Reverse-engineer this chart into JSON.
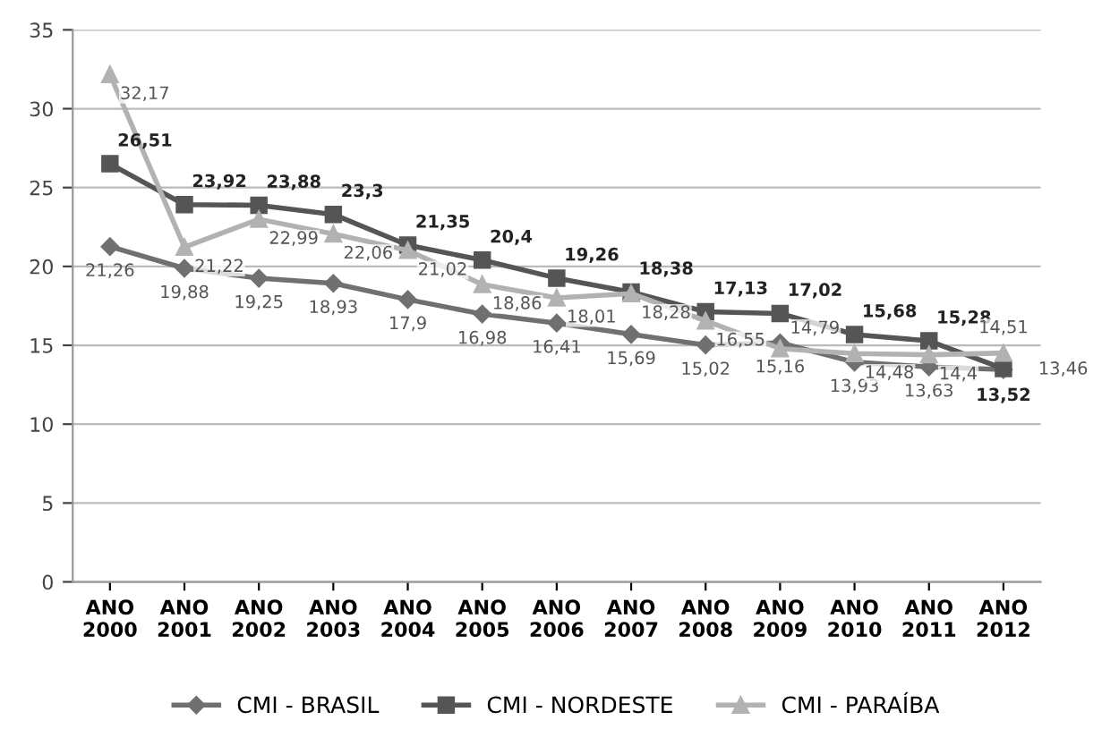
{
  "chart_data": {
    "type": "line",
    "categories": [
      "ANO\n2000",
      "ANO\n2001",
      "ANO\n2002",
      "ANO\n2003",
      "ANO\n2004",
      "ANO\n2005",
      "ANO\n2006",
      "ANO\n2007",
      "ANO\n2008",
      "ANO\n2009",
      "ANO\n2010",
      "ANO\n2011",
      "ANO\n2012"
    ],
    "series": [
      {
        "name": "CMI - BRASIL",
        "color": "#707070",
        "marker": "diamond",
        "values": [
          21.26,
          19.88,
          19.25,
          18.93,
          17.9,
          16.98,
          16.41,
          15.69,
          15.02,
          15.16,
          13.93,
          13.63,
          13.46
        ],
        "value_labels": [
          "21,26",
          "19,88",
          "19,25",
          "18,93",
          "17,9",
          "16,98",
          "16,41",
          "15,69",
          "15,02",
          "15,16",
          "13,93",
          "13,63",
          "13,46"
        ]
      },
      {
        "name": "CMI - NORDESTE",
        "color": "#555555",
        "marker": "square",
        "values": [
          26.51,
          23.92,
          23.88,
          23.3,
          21.35,
          20.4,
          19.26,
          18.38,
          17.13,
          17.02,
          15.68,
          15.28,
          13.52
        ],
        "value_labels": [
          "26,51",
          "23,92",
          "23,88",
          "23,3",
          "21,35",
          "20,4",
          "19,26",
          "18,38",
          "17,13",
          "17,02",
          "15,68",
          "15,28",
          "13,52"
        ]
      },
      {
        "name": "CMI - PARAÍBA",
        "color": "#b2b2b2",
        "marker": "triangle",
        "values": [
          32.17,
          21.22,
          22.99,
          22.06,
          21.02,
          18.86,
          18.01,
          18.28,
          16.55,
          14.79,
          14.48,
          14.4,
          14.51
        ],
        "value_labels": [
          "32,17",
          "21,22",
          "22,99",
          "22,06",
          "21,02",
          "18,86",
          "18,01",
          "18,28",
          "16,55",
          "14,79",
          "14,48",
          "14,4",
          "14,51"
        ]
      }
    ],
    "ylim": [
      0,
      35
    ],
    "yticks": [
      0,
      5,
      10,
      15,
      20,
      25,
      30,
      35
    ],
    "grid": "y",
    "legend": "bottom"
  }
}
